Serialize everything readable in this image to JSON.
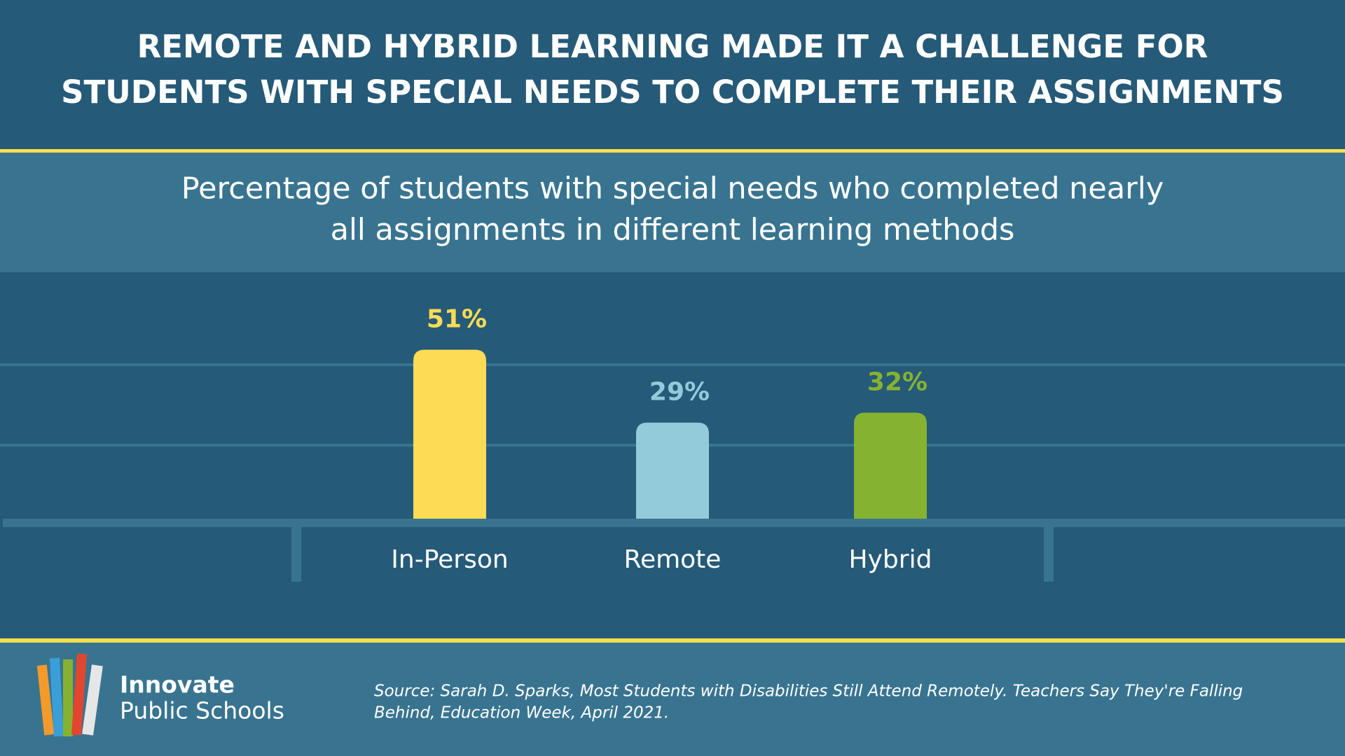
{
  "chart_data": {
    "type": "bar",
    "title": [
      "REMOTE AND HYBRID LEARNING MADE IT A CHALLENGE FOR",
      "STUDENTS WITH SPECIAL NEEDS TO COMPLETE THEIR ASSIGNMENTS"
    ],
    "subtitle": [
      "Percentage of students with special needs who completed nearly",
      "all assignments in different learning methods"
    ],
    "categories": [
      "In-Person",
      "Remote",
      "Hybrid"
    ],
    "values": [
      51,
      29,
      32
    ],
    "value_labels": [
      "51%",
      "29%",
      "32%"
    ],
    "colors": [
      "#fedb55",
      "#93cbdb",
      "#86b231"
    ],
    "ylim": [
      0,
      60
    ]
  },
  "footer": {
    "logo": [
      "Innovate",
      "Public Schools"
    ],
    "source": [
      "Source: Sarah D. Sparks, Most Students with Disabilities Still Attend Remotely. Teachers Say They're Falling",
      "Behind, Education Week, April 2021."
    ]
  }
}
